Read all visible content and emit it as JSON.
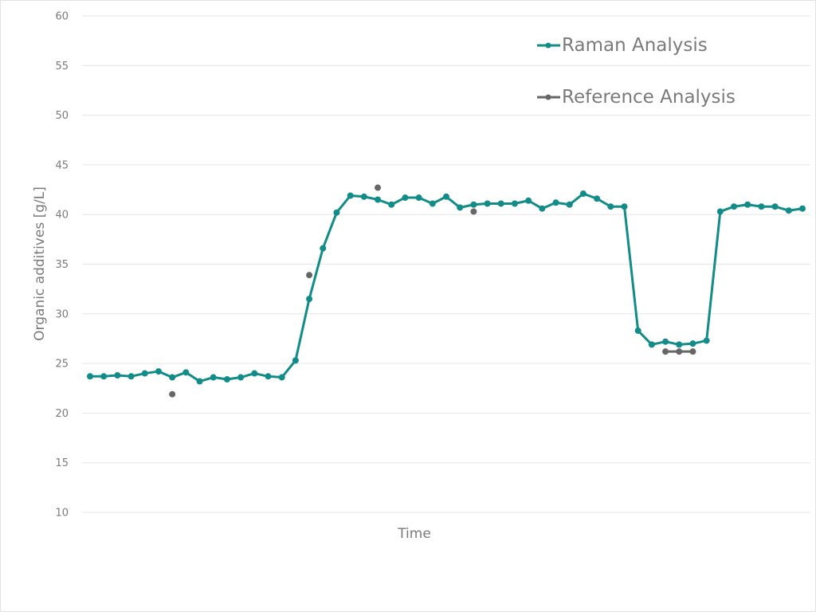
{
  "chart_data": {
    "type": "line",
    "title": "",
    "xlabel": "Time",
    "ylabel": "Organic additives [g/L]",
    "ylim": [
      10,
      60
    ],
    "yticks": [
      10,
      15,
      20,
      25,
      30,
      35,
      40,
      45,
      50,
      55,
      60
    ],
    "grid": true,
    "legend_position": "top-right",
    "x": [
      1,
      2,
      3,
      4,
      5,
      6,
      7,
      8,
      9,
      10,
      11,
      12,
      13,
      14,
      15,
      16,
      17,
      18,
      19,
      20,
      21,
      22,
      23,
      24,
      25,
      26,
      27,
      28,
      29,
      30,
      31,
      32,
      33,
      34,
      35,
      36,
      37,
      38,
      39,
      40,
      41,
      42,
      43,
      44,
      45,
      46,
      47,
      48,
      49,
      50,
      51,
      52,
      53
    ],
    "series": [
      {
        "name": "Raman Analysis",
        "color": "#128c88",
        "values": [
          23.7,
          23.7,
          23.8,
          23.7,
          24.0,
          24.2,
          23.6,
          24.1,
          23.2,
          23.6,
          23.4,
          23.6,
          24.0,
          23.7,
          23.6,
          25.3,
          31.5,
          36.6,
          40.2,
          41.9,
          41.8,
          41.5,
          41.0,
          41.7,
          41.7,
          41.1,
          41.8,
          40.7,
          41.0,
          41.1,
          41.1,
          41.1,
          41.4,
          40.6,
          41.2,
          41.0,
          42.1,
          41.6,
          40.8,
          40.8,
          28.3,
          26.9,
          27.2,
          26.9,
          27.0,
          27.3,
          40.3,
          40.8,
          41.0,
          40.8,
          40.8,
          40.4,
          40.6
        ]
      },
      {
        "name": "Reference Analysis",
        "color": "#666666",
        "values": [
          null,
          null,
          null,
          null,
          null,
          null,
          21.9,
          null,
          null,
          null,
          null,
          null,
          null,
          null,
          null,
          null,
          33.9,
          null,
          null,
          null,
          null,
          42.7,
          null,
          null,
          null,
          null,
          null,
          null,
          40.3,
          null,
          null,
          null,
          null,
          null,
          null,
          null,
          null,
          null,
          null,
          null,
          null,
          null,
          26.2,
          26.2,
          26.2,
          null,
          null,
          null,
          null,
          null,
          null,
          null,
          null
        ]
      }
    ]
  },
  "legend": {
    "items": [
      {
        "label": "Raman Analysis",
        "color": "#128c88"
      },
      {
        "label": "Reference Analysis",
        "color": "#666666"
      }
    ]
  },
  "axes": {
    "x_title": "Time",
    "y_title": "Organic additives [g/L]"
  }
}
